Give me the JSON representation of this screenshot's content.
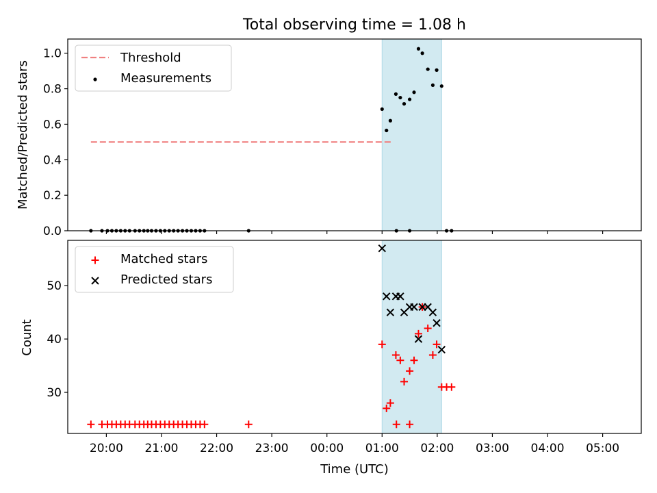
{
  "title": "Total observing time = 1.08 h",
  "colors": {
    "threshold": "#f08080",
    "measurement": "#000000",
    "matched": "#ff0000",
    "predicted": "#000000",
    "window": "#add8e6"
  },
  "chart_data": [
    {
      "type": "scatter",
      "panel": "top",
      "xlabel": "",
      "ylabel": "Matched/Predicted stars",
      "xlim": [
        -0.7,
        9.7
      ],
      "ylim": [
        0,
        1.08
      ],
      "yticks": [
        0.0,
        0.2,
        0.4,
        0.6,
        0.8,
        1.0
      ],
      "ytick_labels": [
        "0.0",
        "0.2",
        "0.4",
        "0.6",
        "0.8",
        "1.0"
      ],
      "observing_window": [
        5.0,
        6.08
      ],
      "threshold": {
        "label": "Threshold",
        "y": 0.5,
        "x": [
          -0.28,
          5.2
        ]
      },
      "legend": [
        "Threshold",
        "Measurements"
      ],
      "legend_position": "upper left",
      "series": [
        {
          "name": "Measurements",
          "marker": "dot",
          "points": [
            [
              -0.28,
              0
            ],
            [
              -0.08,
              0
            ],
            [
              0.02,
              0
            ],
            [
              0.1,
              0
            ],
            [
              0.18,
              0
            ],
            [
              0.26,
              0
            ],
            [
              0.34,
              0
            ],
            [
              0.42,
              0
            ],
            [
              0.52,
              0
            ],
            [
              0.6,
              0
            ],
            [
              0.68,
              0
            ],
            [
              0.75,
              0
            ],
            [
              0.82,
              0
            ],
            [
              0.9,
              0
            ],
            [
              0.98,
              0
            ],
            [
              1.06,
              0
            ],
            [
              1.14,
              0
            ],
            [
              1.22,
              0
            ],
            [
              1.3,
              0
            ],
            [
              1.38,
              0
            ],
            [
              1.46,
              0
            ],
            [
              1.54,
              0
            ],
            [
              1.62,
              0
            ],
            [
              1.7,
              0
            ],
            [
              1.78,
              0
            ],
            [
              2.58,
              0
            ],
            [
              5.26,
              0
            ],
            [
              5.5,
              0
            ],
            [
              5.0,
              0.685
            ],
            [
              5.08,
              0.565
            ],
            [
              5.15,
              0.62
            ],
            [
              5.25,
              0.77
            ],
            [
              5.33,
              0.75
            ],
            [
              5.4,
              0.715
            ],
            [
              5.5,
              0.74
            ],
            [
              5.58,
              0.78
            ],
            [
              5.66,
              1.025
            ],
            [
              5.73,
              1.0
            ],
            [
              5.83,
              0.91
            ],
            [
              5.92,
              0.82
            ],
            [
              5.99,
              0.905
            ],
            [
              6.08,
              0.815
            ],
            [
              6.17,
              0
            ],
            [
              6.26,
              0
            ]
          ]
        }
      ]
    },
    {
      "type": "scatter",
      "panel": "bottom",
      "xlabel": "Time (UTC)",
      "ylabel": "Count",
      "xlim": [
        -0.7,
        9.7
      ],
      "ylim": [
        22.3,
        58.5
      ],
      "yticks": [
        30,
        40,
        50
      ],
      "ytick_labels": [
        "30",
        "40",
        "50"
      ],
      "xticks": [
        0,
        1,
        2,
        3,
        4,
        5,
        6,
        7,
        8,
        9
      ],
      "xtick_labels": [
        "20:00",
        "21:00",
        "22:00",
        "23:00",
        "00:00",
        "01:00",
        "02:00",
        "03:00",
        "04:00",
        "05:00"
      ],
      "observing_window": [
        5.0,
        6.08
      ],
      "legend": [
        "Matched stars",
        "Predicted stars"
      ],
      "legend_position": "upper left",
      "series": [
        {
          "name": "Matched stars",
          "marker": "plus",
          "points": [
            [
              -0.28,
              24
            ],
            [
              -0.08,
              24
            ],
            [
              0.02,
              24
            ],
            [
              0.1,
              24
            ],
            [
              0.18,
              24
            ],
            [
              0.26,
              24
            ],
            [
              0.34,
              24
            ],
            [
              0.42,
              24
            ],
            [
              0.52,
              24
            ],
            [
              0.6,
              24
            ],
            [
              0.68,
              24
            ],
            [
              0.75,
              24
            ],
            [
              0.82,
              24
            ],
            [
              0.9,
              24
            ],
            [
              0.98,
              24
            ],
            [
              1.06,
              24
            ],
            [
              1.14,
              24
            ],
            [
              1.22,
              24
            ],
            [
              1.3,
              24
            ],
            [
              1.38,
              24
            ],
            [
              1.46,
              24
            ],
            [
              1.54,
              24
            ],
            [
              1.62,
              24
            ],
            [
              1.7,
              24
            ],
            [
              1.78,
              24
            ],
            [
              2.58,
              24
            ],
            [
              5.26,
              24
            ],
            [
              5.5,
              24
            ],
            [
              5.0,
              39
            ],
            [
              5.08,
              27
            ],
            [
              5.15,
              28
            ],
            [
              5.25,
              37
            ],
            [
              5.33,
              36
            ],
            [
              5.4,
              32
            ],
            [
              5.5,
              34
            ],
            [
              5.58,
              36
            ],
            [
              5.66,
              41
            ],
            [
              5.73,
              46
            ],
            [
              5.83,
              42
            ],
            [
              5.92,
              37
            ],
            [
              5.99,
              39
            ],
            [
              6.08,
              31
            ],
            [
              6.17,
              31
            ],
            [
              6.26,
              31
            ]
          ]
        },
        {
          "name": "Predicted stars",
          "marker": "x",
          "points": [
            [
              5.0,
              57
            ],
            [
              5.08,
              48
            ],
            [
              5.15,
              45
            ],
            [
              5.25,
              48
            ],
            [
              5.33,
              48
            ],
            [
              5.4,
              45
            ],
            [
              5.5,
              46
            ],
            [
              5.58,
              46
            ],
            [
              5.66,
              40
            ],
            [
              5.73,
              46
            ],
            [
              5.83,
              46
            ],
            [
              5.92,
              45
            ],
            [
              5.99,
              43
            ],
            [
              6.08,
              38
            ]
          ]
        }
      ]
    }
  ]
}
